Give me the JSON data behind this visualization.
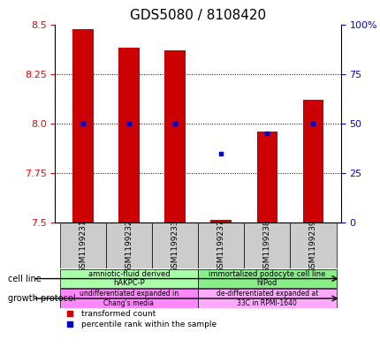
{
  "title": "GDS5080 / 8108420",
  "samples": [
    "GSM1199231",
    "GSM1199232",
    "GSM1199233",
    "GSM1199237",
    "GSM1199238",
    "GSM1199239"
  ],
  "transformed_counts": [
    8.475,
    8.38,
    8.37,
    7.515,
    7.96,
    8.12
  ],
  "percentile_ranks": [
    50,
    50,
    50,
    35,
    45,
    50
  ],
  "ylim_left": [
    7.5,
    8.5
  ],
  "ylim_right": [
    0,
    100
  ],
  "yticks_left": [
    7.5,
    7.75,
    8.0,
    8.25,
    8.5
  ],
  "yticks_right": [
    0,
    25,
    50,
    75,
    100
  ],
  "ytick_labels_right": [
    "0",
    "25",
    "50",
    "75",
    "100%"
  ],
  "bar_color": "#cc0000",
  "dot_color": "#0000cc",
  "bar_bottom": 7.5,
  "cell_line_groups": [
    {
      "label": "amniotic-fluid derived\nhAKPC-P",
      "samples_idx": [
        0,
        1,
        2
      ],
      "color": "#aaffaa"
    },
    {
      "label": "immortalized podocyte cell line\nhIPod",
      "samples_idx": [
        3,
        4,
        5
      ],
      "color": "#88ee88"
    }
  ],
  "growth_protocol_groups": [
    {
      "label": "undifferentiated expanded in\nChang's media",
      "samples_idx": [
        0,
        1,
        2
      ],
      "color": "#ff88ff"
    },
    {
      "label": "de-differentiated expanded at\n33C in RPMI-1640",
      "samples_idx": [
        3,
        4,
        5
      ],
      "color": "#ffaaff"
    }
  ],
  "cell_line_label": "cell line",
  "growth_protocol_label": "growth protocol",
  "legend_items": [
    {
      "label": "transformed count",
      "color": "#cc0000"
    },
    {
      "label": "percentile rank within the sample",
      "color": "#0000cc"
    }
  ],
  "bg_color": "#ffffff",
  "title_fontsize": 11,
  "tick_fontsize": 8,
  "sample_fontsize": 6.5
}
